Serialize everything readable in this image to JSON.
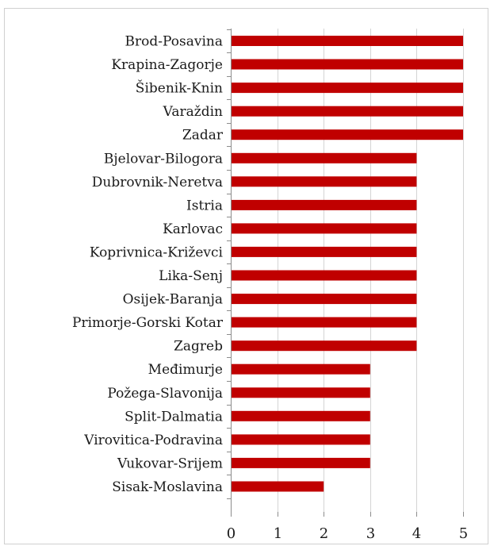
{
  "chart_data": {
    "type": "bar",
    "orientation": "horizontal",
    "title": "",
    "xlabel": "",
    "ylabel": "",
    "categories": [
      "Brod-Posavina",
      "Krapina-Zagorje",
      "Šibenik-Knin",
      "Varaždin",
      "Zadar",
      "Bjelovar-Bilogora",
      "Dubrovnik-Neretva",
      "Istria",
      "Karlovac",
      "Koprivnica-Križevci",
      "Lika-Senj",
      "Osijek-Baranja",
      "Primorje-Gorski Kotar",
      "Zagreb",
      "Međimurje",
      "Požega-Slavonija",
      "Split-Dalmatia",
      "Virovitica-Podravina",
      "Vukovar-Srijem",
      "Sisak-Moslavina"
    ],
    "values": [
      5,
      5,
      5,
      5,
      5,
      4,
      4,
      4,
      4,
      4,
      4,
      4,
      4,
      4,
      3,
      3,
      3,
      3,
      3,
      2
    ],
    "xlim": [
      0,
      5
    ],
    "x_ticks": [
      0,
      1,
      2,
      3,
      4,
      5
    ],
    "x_tick_labels": [
      "0",
      "1",
      "2",
      "3",
      "4",
      "5"
    ],
    "grid": true,
    "legend": "none",
    "bar_color": "#c00000"
  }
}
